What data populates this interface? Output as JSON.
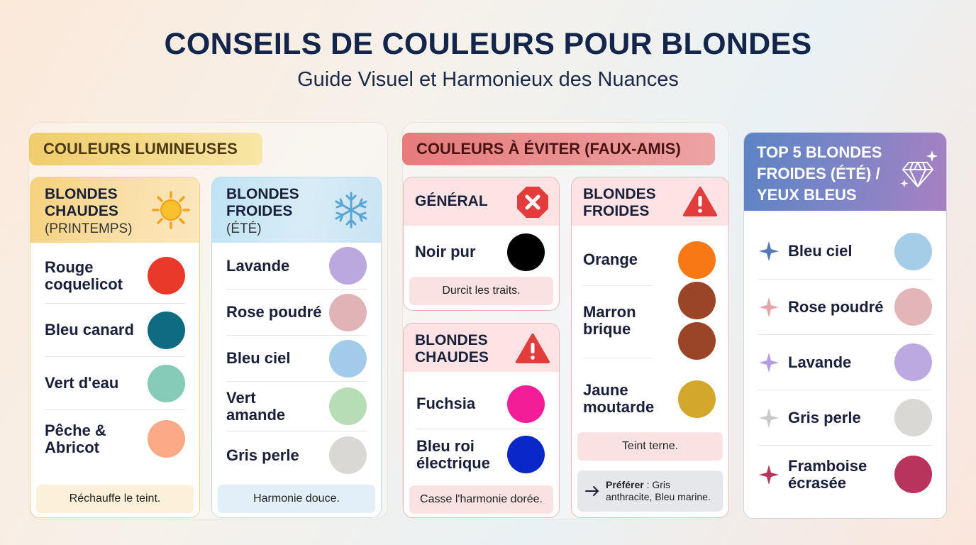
{
  "header": {
    "title": "CONSEILS DE COULEURS POUR BLONDES",
    "subtitle": "Guide Visuel et Harmonieux des Nuances"
  },
  "lumineuses": {
    "tag": "COULEURS LUMINEUSES",
    "chaudes": {
      "title": "BLONDES\nCHAUDES",
      "subtitle": "(PRINTEMPS)",
      "icon": "sun-icon",
      "items": [
        {
          "label": "Rouge\ncoquelicot",
          "color": "#e8392b"
        },
        {
          "label": "Bleu canard",
          "color": "#0e6b82"
        },
        {
          "label": "Vert d'eau",
          "color": "#86cbb7"
        },
        {
          "label": "Pêche &\nAbricot",
          "color": "#fcaa85"
        }
      ],
      "note": "Réchauffe le teint."
    },
    "froides": {
      "title": "BLONDES\nFROIDES",
      "subtitle": "(ÉTÉ)",
      "icon": "snowflake-icon",
      "items": [
        {
          "label": "Lavande",
          "color": "#bba8de"
        },
        {
          "label": "Rose poudré",
          "color": "#e0b4b7"
        },
        {
          "label": "Bleu ciel",
          "color": "#a2cbe9"
        },
        {
          "label": "Vert\namande",
          "color": "#b7ddb7"
        },
        {
          "label": "Gris perle",
          "color": "#d9d8d4"
        }
      ],
      "note": "Harmonie douce."
    }
  },
  "eviter": {
    "tag": "COULEURS À ÉVITER (FAUX-AMIS)",
    "general": {
      "title": "GÉNÉRAL",
      "icon": "error-x-icon",
      "items": [
        {
          "label": "Noir pur",
          "color": "#000000"
        }
      ],
      "note": "Durcit les traits."
    },
    "chaudes": {
      "title": "BLONDES\nCHAUDES",
      "icon": "warning-icon",
      "items": [
        {
          "label": "Fuchsia",
          "color": "#f21d97"
        },
        {
          "label": "Bleu roi\nélectrique",
          "color": "#0a28c8"
        }
      ],
      "note": "Casse l'harmonie dorée."
    },
    "froides": {
      "title": "BLONDES\nFROIDES",
      "icon": "warning-icon",
      "items": [
        {
          "label": "Orange",
          "color": "#f97816"
        },
        {
          "label": "Marron\nbrique",
          "color": "#9a4528"
        },
        {
          "label": "Jaune\nmoutarde",
          "color": "#d3a62c"
        }
      ],
      "note": "Teint terne.",
      "prefer_label": "Préférer",
      "prefer_text": " : Gris\nanthracite, Bleu marine."
    }
  },
  "top5": {
    "title": "TOP 5 BLONDES\nFROIDES (ÉTÉ) /\nYEUX BLEUS",
    "icon": "diamond-icon",
    "items": [
      {
        "label": "Bleu ciel",
        "color": "#a6cde8",
        "spark": "#5579b8"
      },
      {
        "label": "Rose poudré",
        "color": "#e2b5b8",
        "spark": "#e8a4ab"
      },
      {
        "label": "Lavande",
        "color": "#bba9df",
        "spark": "#b49ddf"
      },
      {
        "label": "Gris perle",
        "color": "#d9d8d4",
        "spark": "#c9c9c9"
      },
      {
        "label": "Framboise\nécrasée",
        "color": "#b8345d",
        "spark": "#b8345d"
      }
    ]
  }
}
